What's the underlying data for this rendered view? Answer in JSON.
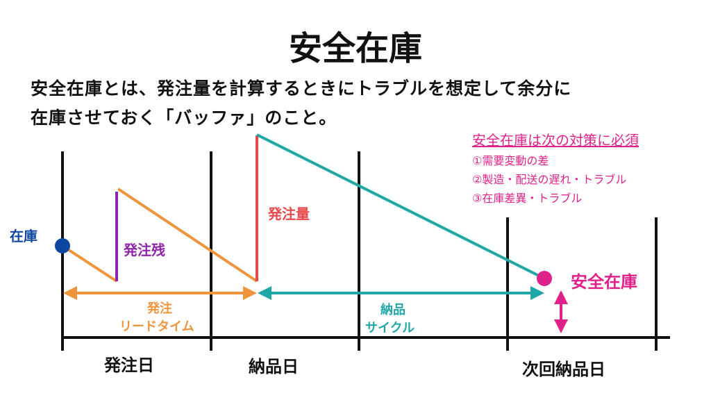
{
  "title": "安全在庫",
  "description": {
    "line1": "安全在庫とは、発注量を計算するときにトラブルを想定して余分に",
    "line2": "在庫させておく「バッファ」のこと。"
  },
  "reasons": {
    "title": "安全在庫は次の対策に必須",
    "items": [
      "①需要変動の差",
      "②製造・配送の遅れ・トラブル",
      "③在庫差異・トラブル"
    ]
  },
  "labels": {
    "stock": "在庫",
    "order_remaining": "発注残",
    "order_quantity": "発注量",
    "safety_stock": "安全在庫",
    "lead_time_1": "発注",
    "lead_time_2": "リードタイム",
    "delivery_cycle_1": "納品",
    "delivery_cycle_2": "サイクル",
    "order_day": "発注日",
    "delivery_day": "納品日",
    "next_delivery_day": "次回納品日"
  },
  "colors": {
    "orange": "#f0943c",
    "purple": "#8e24aa",
    "red": "#e8484a",
    "teal": "#1fa6a6",
    "blue": "#0d47a1",
    "pink": "#e0218a",
    "black": "#111111"
  }
}
